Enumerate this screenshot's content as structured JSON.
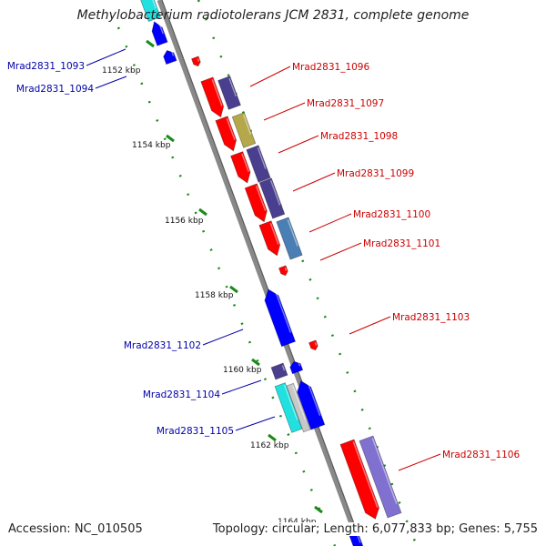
{
  "title": "Methylobacterium radiotolerans JCM 2831, complete genome",
  "footer": {
    "accession": "Accession: NC_010505",
    "summary": "Topology: circular; Length: 6,077,833 bp; Genes: 5,755"
  },
  "scale_labels": [
    "1152 kbp",
    "1154 kbp",
    "1156 kbp",
    "1158 kbp",
    "1160 kbp",
    "1162 kbp",
    "1164 kbp"
  ],
  "gene_labels": {
    "forward": [
      "Mrad2831_1096",
      "Mrad2831_1097",
      "Mrad2831_1098",
      "Mrad2831_1099",
      "Mrad2831_1100",
      "Mrad2831_1101",
      "Mrad2831_1103",
      "Mrad2831_1106"
    ],
    "reverse": [
      "Mrad2831_1093",
      "Mrad2831_1094",
      "Mrad2831_1102",
      "Mrad2831_1104",
      "Mrad2831_1105"
    ]
  },
  "colors": {
    "backbone": "#888888",
    "forward_label": "#cc0000",
    "reverse_label": "#0000aa",
    "cds_red": "#ff0000",
    "cds_blue": "#0000ff",
    "purple": "#4a3f8f",
    "olive": "#b5a84a",
    "steel": "#4a7fb5",
    "cyan": "#20e0e0",
    "lavender": "#8070d0",
    "light_gray": "#c8c8c8",
    "tick_green": "#1a8a1a"
  }
}
